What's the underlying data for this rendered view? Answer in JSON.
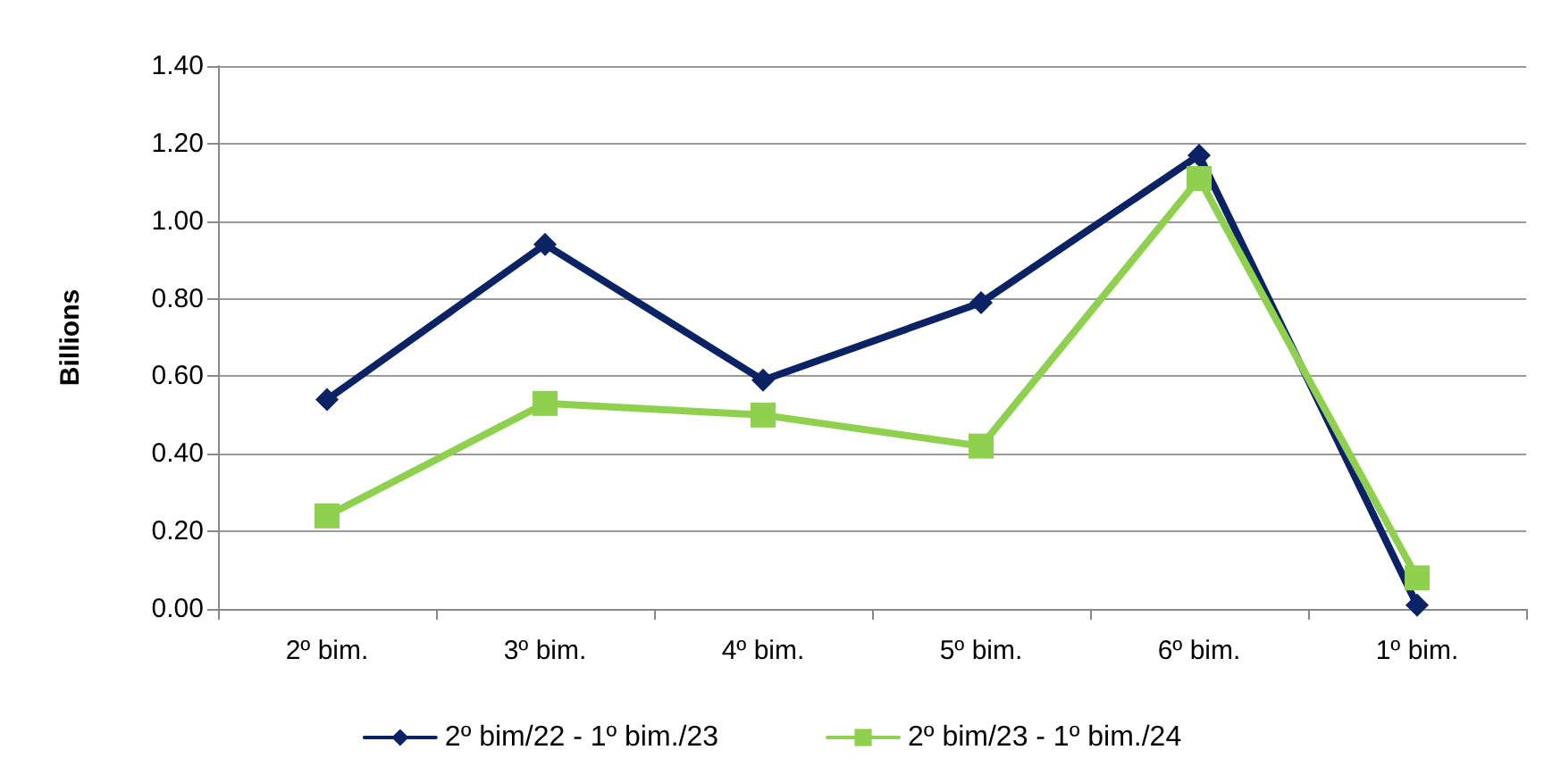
{
  "chart_data": {
    "type": "line",
    "ylabel": "Billions",
    "categories": [
      "2º bim.",
      "3º bim.",
      "4º bim.",
      "5º bim.",
      "6º bim.",
      "1º bim."
    ],
    "series": [
      {
        "name": "2º bim/22 - 1º bim./23",
        "color": "#0b2265",
        "marker": "diamond",
        "values": [
          0.54,
          0.94,
          0.59,
          0.79,
          1.17,
          0.01
        ]
      },
      {
        "name": "2º bim/23 - 1º bim./24",
        "color": "#8fd14f",
        "marker": "square",
        "values": [
          0.24,
          0.53,
          0.5,
          0.42,
          1.11,
          0.08
        ]
      }
    ],
    "ylim": [
      0,
      1.4
    ],
    "yticks": [
      {
        "value": 0,
        "label": "0.00"
      },
      {
        "value": 0.2,
        "label": "0.20"
      },
      {
        "value": 0.4,
        "label": "0.40"
      },
      {
        "value": 0.6,
        "label": "0.60"
      },
      {
        "value": 0.8,
        "label": "0.80"
      },
      {
        "value": 1.0,
        "label": "1.00"
      },
      {
        "value": 1.2,
        "label": "1.20"
      },
      {
        "value": 1.4,
        "label": "1.40"
      }
    ],
    "grid": "y",
    "legend": "bottom",
    "line_style": "solid"
  }
}
